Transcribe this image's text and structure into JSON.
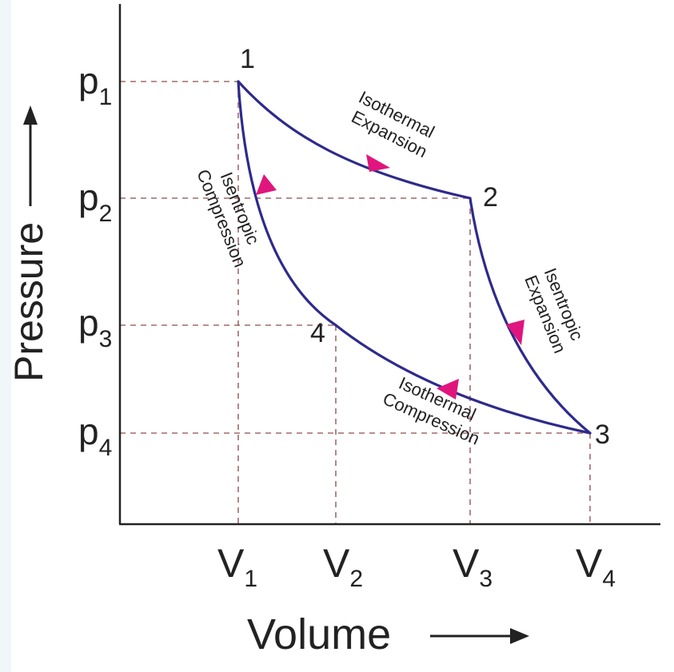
{
  "diagram": {
    "y_axis_label": "Pressure",
    "x_axis_label": "Volume",
    "pressure_ticks": [
      {
        "base": "p",
        "sub": "1"
      },
      {
        "base": "p",
        "sub": "2"
      },
      {
        "base": "p",
        "sub": "3"
      },
      {
        "base": "p",
        "sub": "4"
      }
    ],
    "volume_ticks": [
      {
        "base": "V",
        "sub": "1"
      },
      {
        "base": "V",
        "sub": "2"
      },
      {
        "base": "V",
        "sub": "3"
      },
      {
        "base": "V",
        "sub": "4"
      }
    ],
    "states": [
      "1",
      "2",
      "3",
      "4"
    ],
    "processes": [
      {
        "line1": "Isothermal",
        "line2": "Expansion"
      },
      {
        "line1": "Isentropic",
        "line2": "Expansion"
      },
      {
        "line1": "Isothermal",
        "line2": "Compression"
      },
      {
        "line1": "Isentropic",
        "line2": "Compression"
      }
    ],
    "colors": {
      "curve": "#2e2a8c",
      "arrow": "#e0157d",
      "guide": "#a06a6a",
      "axis": "#222222"
    }
  }
}
